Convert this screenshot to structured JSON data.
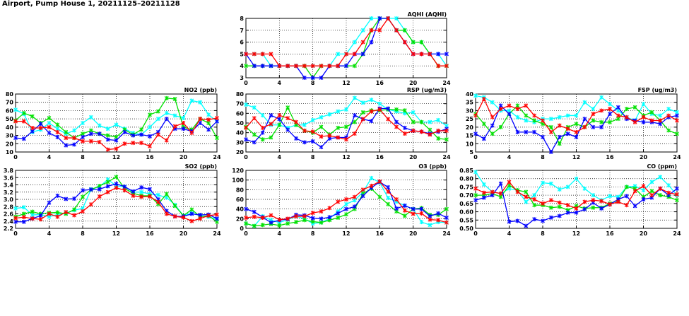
{
  "title": "Airport, Pump House 1, 20211125–20211128",
  "chart_data": [
    {
      "type": "line",
      "title": "AQHI (AQHI)",
      "x": [
        0,
        1,
        2,
        3,
        4,
        5,
        6,
        7,
        8,
        9,
        10,
        11,
        12,
        13,
        14,
        15,
        16,
        17,
        18,
        19,
        20,
        21,
        22,
        23,
        24
      ],
      "xlim": [
        0,
        24
      ],
      "ylim": [
        3,
        8
      ],
      "xticks": [
        0,
        4,
        8,
        12,
        16,
        20,
        24
      ],
      "yticks": [
        3,
        4,
        5,
        6,
        7,
        8
      ],
      "grid": true,
      "series": [
        {
          "color": "#00ffff",
          "values": [
            5,
            5,
            5,
            4,
            4,
            4,
            4,
            4,
            4,
            4,
            4,
            5,
            5,
            6,
            7,
            8,
            8,
            8,
            8,
            7,
            6,
            6,
            5,
            5,
            4
          ]
        },
        {
          "color": "#00e000",
          "values": [
            4,
            4,
            4,
            4,
            4,
            4,
            4,
            4,
            3,
            4,
            4,
            4,
            4,
            4,
            5,
            7,
            8,
            8,
            7,
            7,
            6,
            6,
            5,
            4,
            4
          ]
        },
        {
          "color": "#0000ff",
          "values": [
            5,
            4,
            4,
            4,
            4,
            4,
            4,
            3,
            3,
            3,
            4,
            4,
            4,
            5,
            5,
            6,
            8,
            8,
            7,
            6,
            5,
            5,
            5,
            5,
            5
          ]
        },
        {
          "color": "#ff0000",
          "values": [
            5,
            5,
            5,
            5,
            4,
            4,
            4,
            4,
            4,
            4,
            4,
            4,
            5,
            5,
            6,
            7,
            7,
            8,
            7,
            6,
            5,
            5,
            5,
            4,
            4
          ]
        }
      ]
    },
    {
      "type": "line",
      "title": "NO2 (ppb)",
      "x": [
        0,
        1,
        2,
        3,
        4,
        5,
        6,
        7,
        8,
        9,
        10,
        11,
        12,
        13,
        14,
        15,
        16,
        17,
        18,
        19,
        20,
        21,
        22,
        23,
        24
      ],
      "xlim": [
        0,
        24
      ],
      "ylim": [
        10,
        80
      ],
      "xticks": [
        0,
        4,
        8,
        12,
        16,
        20,
        24
      ],
      "yticks": [
        10,
        20,
        30,
        40,
        50,
        60,
        70,
        80
      ],
      "grid": true,
      "series": [
        {
          "color": "#00ffff",
          "values": [
            61,
            56,
            34,
            37,
            45,
            38,
            32,
            36,
            45,
            52,
            42,
            38,
            43,
            38,
            33,
            31,
            40,
            50,
            57,
            54,
            51,
            72,
            70,
            55,
            47
          ]
        },
        {
          "color": "#00e000",
          "values": [
            48,
            57,
            53,
            45,
            51,
            43,
            34,
            27,
            32,
            36,
            32,
            30,
            28,
            37,
            31,
            37,
            55,
            59,
            75,
            74,
            40,
            37,
            50,
            45,
            27
          ]
        },
        {
          "color": "#0000ff",
          "values": [
            27,
            26,
            35,
            44,
            33,
            28,
            18,
            19,
            28,
            32,
            32,
            25,
            24,
            34,
            30,
            31,
            29,
            34,
            50,
            38,
            38,
            35,
            45,
            37,
            47
          ]
        },
        {
          "color": "#ff0000",
          "values": [
            47,
            47,
            39,
            39,
            40,
            34,
            27,
            27,
            23,
            23,
            22,
            13,
            14,
            20,
            21,
            21,
            17,
            31,
            24,
            41,
            45,
            33,
            50,
            49,
            51
          ]
        }
      ]
    },
    {
      "type": "line",
      "title": "RSP (ug/m3)",
      "x": [
        0,
        1,
        2,
        3,
        4,
        5,
        6,
        7,
        8,
        9,
        10,
        11,
        12,
        13,
        14,
        15,
        16,
        17,
        18,
        19,
        20,
        21,
        22,
        23,
        24
      ],
      "xlim": [
        0,
        24
      ],
      "ylim": [
        20,
        80
      ],
      "xticks": [
        0,
        4,
        8,
        12,
        16,
        20,
        24
      ],
      "yticks": [
        20,
        30,
        40,
        50,
        60,
        70,
        80
      ],
      "grid": true,
      "series": [
        {
          "color": "#00ffff",
          "values": [
            69,
            66,
            58,
            48,
            48,
            45,
            48,
            48,
            53,
            56,
            59,
            62,
            64,
            76,
            71,
            74,
            70,
            64,
            62,
            60,
            61,
            51,
            51,
            53,
            47
          ]
        },
        {
          "color": "#00e000",
          "values": [
            46,
            38,
            33,
            35,
            48,
            66,
            48,
            42,
            40,
            46,
            38,
            45,
            46,
            51,
            61,
            63,
            63,
            64,
            64,
            63,
            51,
            51,
            43,
            34,
            33
          ]
        },
        {
          "color": "#0000ff",
          "values": [
            33,
            30,
            40,
            58,
            54,
            43,
            34,
            30,
            31,
            25,
            34,
            35,
            35,
            58,
            54,
            52,
            65,
            65,
            51,
            45,
            42,
            41,
            39,
            41,
            44
          ]
        },
        {
          "color": "#ff0000",
          "values": [
            45,
            55,
            45,
            49,
            58,
            55,
            51,
            42,
            41,
            36,
            37,
            35,
            33,
            39,
            54,
            62,
            64,
            54,
            46,
            39,
            42,
            41,
            38,
            42,
            42
          ]
        }
      ]
    },
    {
      "type": "line",
      "title": "FSP (ug/m3)",
      "x": [
        0,
        1,
        2,
        3,
        4,
        5,
        6,
        7,
        8,
        9,
        10,
        11,
        12,
        13,
        14,
        15,
        16,
        17,
        18,
        19,
        20,
        21,
        22,
        23,
        24
      ],
      "xlim": [
        0,
        24
      ],
      "ylim": [
        5,
        40
      ],
      "xticks": [
        0,
        4,
        8,
        12,
        16,
        20,
        24
      ],
      "yticks": [
        5,
        10,
        15,
        20,
        25,
        30,
        35,
        40
      ],
      "grid": true,
      "series": [
        {
          "color": "#00ffff",
          "values": [
            39,
            38,
            35,
            30,
            30,
            26,
            24,
            23,
            25,
            25,
            26,
            27,
            27,
            35,
            31,
            38,
            34,
            30,
            26,
            24,
            34,
            28,
            27,
            31,
            29
          ]
        },
        {
          "color": "#00e000",
          "values": [
            28,
            22,
            16,
            20,
            28,
            33,
            27,
            24,
            22,
            20,
            10,
            20,
            22,
            20,
            24,
            23,
            23,
            25,
            31,
            32,
            27,
            29,
            24,
            18,
            16
          ]
        },
        {
          "color": "#0000ff",
          "values": [
            16,
            13,
            21,
            33,
            28,
            17,
            17,
            17,
            14,
            5,
            14,
            16,
            14,
            25,
            20,
            20,
            28,
            32,
            25,
            24,
            23,
            23,
            22,
            26,
            27
          ]
        },
        {
          "color": "#ff0000",
          "values": [
            27,
            37,
            26,
            31,
            33,
            31,
            33,
            27,
            24,
            17,
            21,
            19,
            17,
            20,
            28,
            30,
            31,
            27,
            26,
            23,
            26,
            24,
            24,
            27,
            24
          ]
        }
      ]
    },
    {
      "type": "line",
      "title": "SO2 (ppb)",
      "x": [
        0,
        1,
        2,
        3,
        4,
        5,
        6,
        7,
        8,
        9,
        10,
        11,
        12,
        13,
        14,
        15,
        16,
        17,
        18,
        19,
        20,
        21,
        22,
        23,
        24
      ],
      "xlim": [
        0,
        24
      ],
      "ylim": [
        2.2,
        3.8
      ],
      "xticks": [
        0,
        4,
        8,
        12,
        16,
        20,
        24
      ],
      "yticks": [
        "2.2",
        "2.4",
        "2.6",
        "2.8",
        "3.0",
        "3.2",
        "3.4",
        "3.6",
        "3.8"
      ],
      "grid": true,
      "series": [
        {
          "color": "#00ffff",
          "values": [
            2.75,
            2.78,
            2.57,
            2.58,
            2.52,
            2.58,
            2.62,
            2.7,
            2.75,
            3.28,
            3.35,
            3.55,
            3.37,
            3.35,
            3.2,
            3.2,
            3.15,
            3.12,
            3.05,
            2.85,
            2.55,
            2.62,
            2.55,
            2.52,
            2.45
          ]
        },
        {
          "color": "#00e000",
          "values": [
            2.52,
            2.6,
            2.66,
            2.6,
            2.63,
            2.64,
            2.6,
            2.72,
            3.07,
            3.27,
            3.37,
            3.48,
            3.62,
            3.3,
            3.17,
            3.1,
            3.1,
            2.87,
            3.15,
            2.82,
            2.55,
            2.72,
            2.52,
            2.55,
            2.38
          ]
        },
        {
          "color": "#0000ff",
          "values": [
            2.38,
            2.38,
            2.47,
            2.55,
            2.91,
            3.1,
            3.01,
            3.02,
            3.25,
            3.27,
            3.28,
            3.36,
            3.43,
            3.35,
            3.22,
            3.33,
            3.28,
            3.0,
            2.68,
            2.53,
            2.53,
            2.6,
            2.57,
            2.58,
            2.47
          ]
        },
        {
          "color": "#ff0000",
          "values": [
            2.48,
            2.51,
            2.47,
            2.45,
            2.6,
            2.52,
            2.65,
            2.56,
            2.67,
            2.86,
            3.08,
            3.2,
            3.32,
            3.25,
            3.1,
            3.07,
            3.08,
            2.93,
            2.6,
            2.53,
            2.5,
            2.4,
            2.47,
            2.55,
            2.58
          ]
        }
      ]
    },
    {
      "type": "line",
      "title": "O3 (ppb)",
      "x": [
        0,
        1,
        2,
        3,
        4,
        5,
        6,
        7,
        8,
        9,
        10,
        11,
        12,
        13,
        14,
        15,
        16,
        17,
        18,
        19,
        20,
        21,
        22,
        23,
        24
      ],
      "xlim": [
        0,
        24
      ],
      "ylim": [
        0,
        120
      ],
      "xticks": [
        0,
        4,
        8,
        12,
        16,
        20,
        24
      ],
      "yticks": [
        0,
        20,
        40,
        60,
        80,
        100,
        120
      ],
      "grid": true,
      "series": [
        {
          "color": "#00ffff",
          "values": [
            10,
            5,
            25,
            17,
            12,
            18,
            25,
            20,
            10,
            12,
            20,
            35,
            50,
            58,
            75,
            104,
            95,
            63,
            55,
            47,
            40,
            13,
            7,
            13,
            12
          ]
        },
        {
          "color": "#00e000",
          "values": [
            10,
            5,
            7,
            9,
            6,
            10,
            13,
            17,
            14,
            12,
            17,
            22,
            29,
            40,
            72,
            82,
            65,
            50,
            35,
            26,
            40,
            42,
            28,
            28,
            40
          ]
        },
        {
          "color": "#0000ff",
          "values": [
            40,
            34,
            23,
            12,
            17,
            19,
            28,
            27,
            21,
            20,
            23,
            31,
            40,
            45,
            67,
            84,
            96,
            85,
            41,
            47,
            40,
            40,
            25,
            31,
            22
          ]
        },
        {
          "color": "#ff0000",
          "values": [
            22,
            24,
            22,
            27,
            18,
            20,
            25,
            25,
            32,
            35,
            42,
            55,
            60,
            65,
            80,
            88,
            97,
            76,
            60,
            37,
            30,
            31,
            18,
            17,
            12
          ]
        }
      ]
    },
    {
      "type": "line",
      "title": "CO (ppm)",
      "x": [
        0,
        1,
        2,
        3,
        4,
        5,
        6,
        7,
        8,
        9,
        10,
        11,
        12,
        13,
        14,
        15,
        16,
        17,
        18,
        19,
        20,
        21,
        22,
        23,
        24
      ],
      "xlim": [
        0,
        24
      ],
      "ylim": [
        0.5,
        0.85
      ],
      "xticks": [
        0,
        4,
        8,
        12,
        16,
        20,
        24
      ],
      "yticks": [
        "0.50",
        "0.55",
        "0.60",
        "0.65",
        "0.70",
        "0.75",
        "0.80",
        "0.85"
      ],
      "grid": true,
      "series": [
        {
          "color": "#00ffff",
          "values": [
            0.84,
            0.765,
            0.72,
            0.71,
            0.74,
            0.73,
            0.66,
            0.7,
            0.775,
            0.77,
            0.735,
            0.75,
            0.8,
            0.74,
            0.7,
            0.67,
            0.695,
            0.69,
            0.75,
            0.755,
            0.73,
            0.78,
            0.81,
            0.76,
            0.7
          ]
        },
        {
          "color": "#00e000",
          "values": [
            0.7,
            0.7,
            0.71,
            0.69,
            0.76,
            0.73,
            0.72,
            0.64,
            0.64,
            0.625,
            0.63,
            0.61,
            0.635,
            0.62,
            0.625,
            0.625,
            0.65,
            0.67,
            0.75,
            0.74,
            0.69,
            0.725,
            0.7,
            0.69,
            0.67
          ]
        },
        {
          "color": "#0000ff",
          "values": [
            0.67,
            0.685,
            0.7,
            0.77,
            0.54,
            0.545,
            0.515,
            0.555,
            0.545,
            0.565,
            0.575,
            0.595,
            0.595,
            0.615,
            0.655,
            0.62,
            0.645,
            0.675,
            0.695,
            0.635,
            0.675,
            0.685,
            0.74,
            0.7,
            0.74
          ]
        },
        {
          "color": "#ff0000",
          "values": [
            0.74,
            0.715,
            0.72,
            0.71,
            0.78,
            0.72,
            0.69,
            0.675,
            0.65,
            0.67,
            0.655,
            0.64,
            0.62,
            0.66,
            0.67,
            0.665,
            0.645,
            0.66,
            0.64,
            0.725,
            0.755,
            0.7,
            0.74,
            0.715,
            0.705
          ]
        }
      ]
    }
  ]
}
